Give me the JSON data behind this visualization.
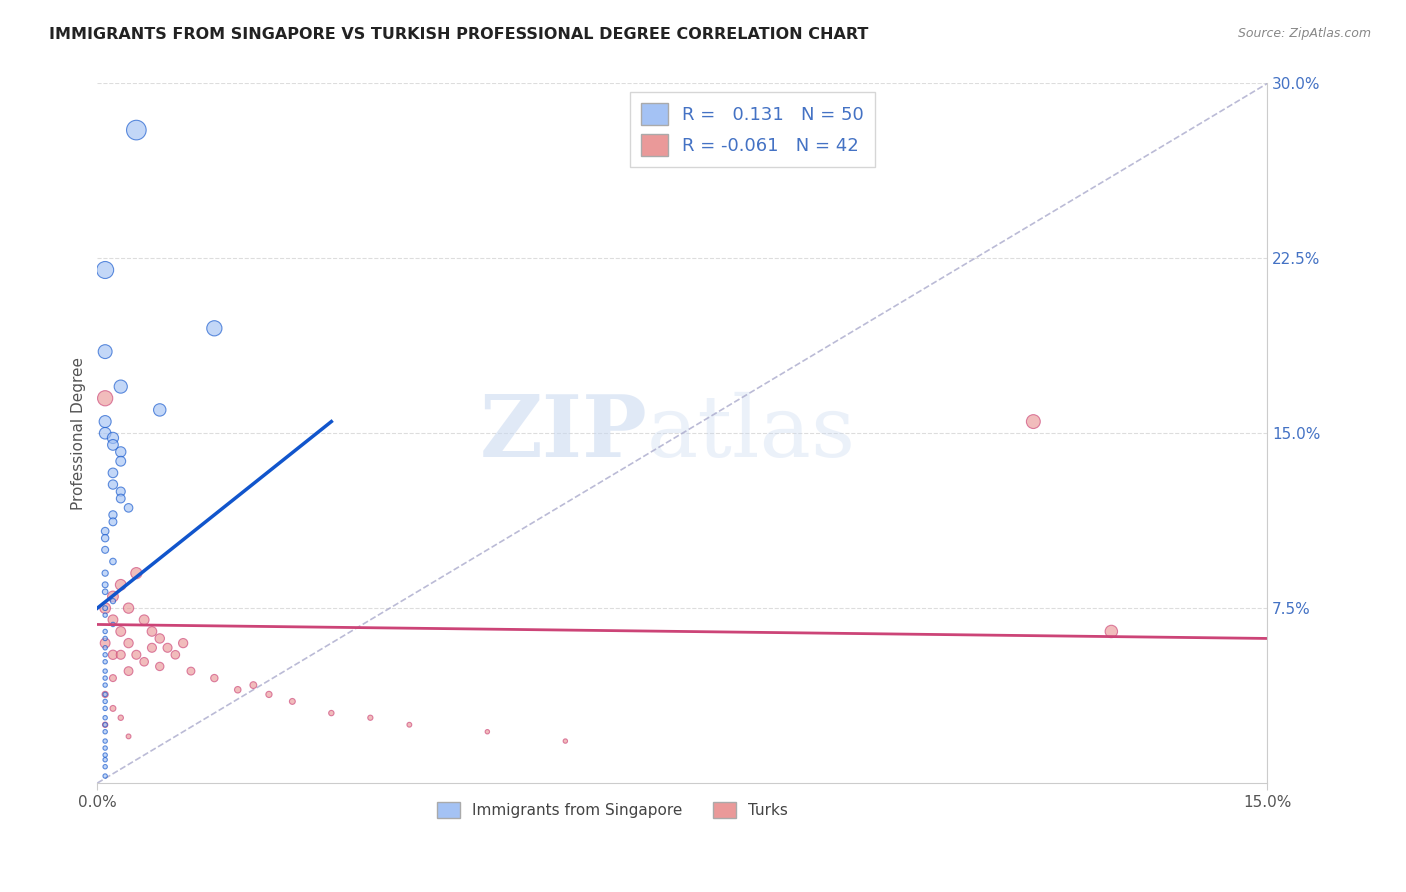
{
  "title": "IMMIGRANTS FROM SINGAPORE VS TURKISH PROFESSIONAL DEGREE CORRELATION CHART",
  "source": "Source: ZipAtlas.com",
  "ylabel": "Professional Degree",
  "legend_label_1": "Immigrants from Singapore",
  "legend_label_2": "Turks",
  "r1": 0.131,
  "n1": 50,
  "r2": -0.061,
  "n2": 42,
  "xmin": 0.0,
  "xmax": 0.15,
  "ymin": 0.0,
  "ymax": 0.3,
  "xticks": [
    0.0,
    0.15
  ],
  "xtick_labels": [
    "0.0%",
    "15.0%"
  ],
  "yticks_right": [
    0.075,
    0.15,
    0.225,
    0.3
  ],
  "ytick_labels_right": [
    "7.5%",
    "15.0%",
    "22.5%",
    "30.0%"
  ],
  "color_blue": "#a4c2f4",
  "color_blue_line": "#1155cc",
  "color_pink": "#ea9999",
  "color_pink_line": "#cc4477",
  "color_dashed": "#aaaacc",
  "watermark_zip": "ZIP",
  "watermark_atlas": "atlas",
  "blue_x": [
    0.005,
    0.001,
    0.015,
    0.001,
    0.003,
    0.008,
    0.001,
    0.001,
    0.002,
    0.002,
    0.003,
    0.003,
    0.002,
    0.002,
    0.003,
    0.003,
    0.004,
    0.002,
    0.002,
    0.001,
    0.001,
    0.001,
    0.002,
    0.001,
    0.001,
    0.001,
    0.002,
    0.001,
    0.001,
    0.002,
    0.001,
    0.001,
    0.001,
    0.001,
    0.001,
    0.001,
    0.001,
    0.001,
    0.001,
    0.001,
    0.001,
    0.001,
    0.001,
    0.001,
    0.001,
    0.001,
    0.001,
    0.001,
    0.001,
    0.001
  ],
  "blue_y": [
    0.28,
    0.22,
    0.195,
    0.185,
    0.17,
    0.16,
    0.155,
    0.15,
    0.148,
    0.145,
    0.142,
    0.138,
    0.133,
    0.128,
    0.125,
    0.122,
    0.118,
    0.115,
    0.112,
    0.108,
    0.105,
    0.1,
    0.095,
    0.09,
    0.085,
    0.082,
    0.078,
    0.075,
    0.072,
    0.068,
    0.065,
    0.062,
    0.058,
    0.055,
    0.052,
    0.048,
    0.045,
    0.042,
    0.038,
    0.035,
    0.032,
    0.028,
    0.025,
    0.022,
    0.018,
    0.015,
    0.012,
    0.01,
    0.007,
    0.003
  ],
  "blue_sizes": [
    200,
    150,
    120,
    100,
    90,
    80,
    75,
    70,
    65,
    60,
    55,
    50,
    48,
    45,
    42,
    40,
    38,
    35,
    32,
    30,
    28,
    25,
    22,
    20,
    18,
    16,
    14,
    12,
    10,
    10,
    10,
    10,
    10,
    10,
    10,
    10,
    10,
    10,
    10,
    10,
    10,
    10,
    10,
    10,
    10,
    10,
    10,
    10,
    10,
    10
  ],
  "pink_x": [
    0.001,
    0.001,
    0.001,
    0.002,
    0.002,
    0.002,
    0.003,
    0.003,
    0.003,
    0.004,
    0.004,
    0.004,
    0.005,
    0.005,
    0.006,
    0.006,
    0.007,
    0.007,
    0.008,
    0.008,
    0.009,
    0.01,
    0.011,
    0.012,
    0.015,
    0.018,
    0.02,
    0.022,
    0.025,
    0.03,
    0.035,
    0.04,
    0.05,
    0.06,
    0.001,
    0.001,
    0.002,
    0.002,
    0.003,
    0.004,
    0.12,
    0.13
  ],
  "pink_y": [
    0.165,
    0.075,
    0.06,
    0.08,
    0.07,
    0.055,
    0.085,
    0.065,
    0.055,
    0.075,
    0.06,
    0.048,
    0.09,
    0.055,
    0.07,
    0.052,
    0.065,
    0.058,
    0.062,
    0.05,
    0.058,
    0.055,
    0.06,
    0.048,
    0.045,
    0.04,
    0.042,
    0.038,
    0.035,
    0.03,
    0.028,
    0.025,
    0.022,
    0.018,
    0.038,
    0.025,
    0.045,
    0.032,
    0.028,
    0.02,
    0.155,
    0.065
  ],
  "pink_sizes": [
    120,
    60,
    50,
    60,
    50,
    45,
    60,
    50,
    42,
    55,
    45,
    40,
    65,
    42,
    50,
    38,
    48,
    42,
    46,
    36,
    42,
    38,
    44,
    32,
    28,
    22,
    24,
    20,
    18,
    15,
    14,
    12,
    10,
    10,
    20,
    15,
    25,
    18,
    15,
    12,
    100,
    80
  ],
  "blue_trend_x0": 0.0,
  "blue_trend_y0": 0.075,
  "blue_trend_x1": 0.03,
  "blue_trend_y1": 0.155,
  "pink_trend_x0": 0.0,
  "pink_trend_y0": 0.068,
  "pink_trend_x1": 0.15,
  "pink_trend_y1": 0.062
}
